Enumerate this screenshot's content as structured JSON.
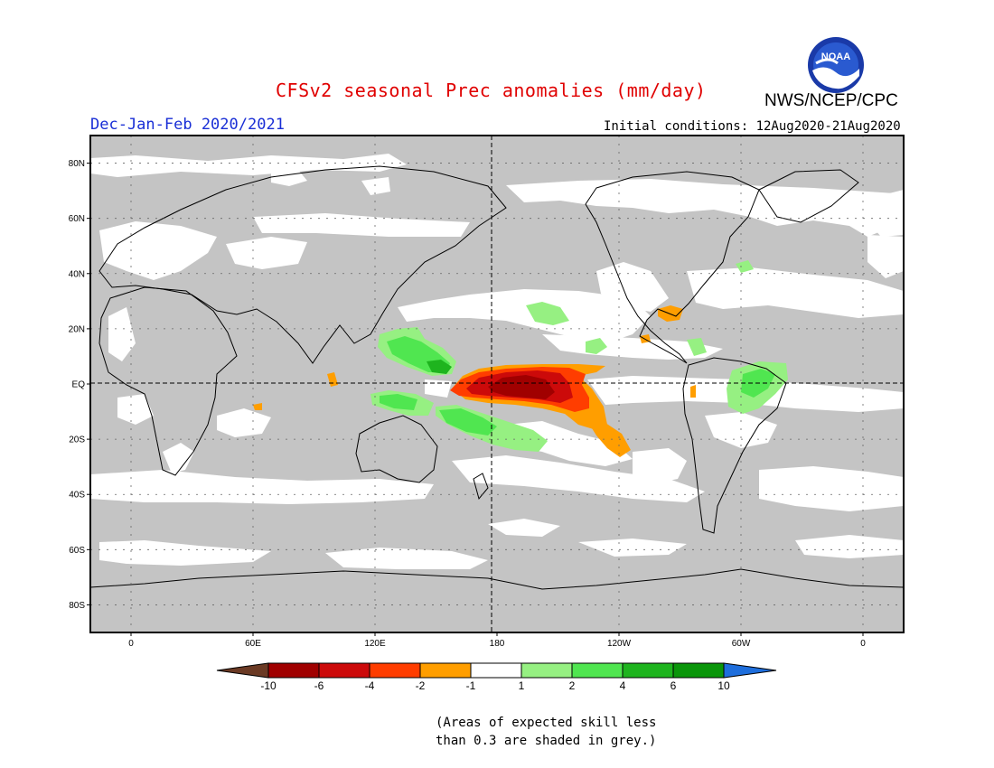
{
  "header": {
    "title": "CFSv2 seasonal Prec anomalies (mm/day)",
    "organization": "NWS/NCEP/CPC",
    "logo_text": "NOAA",
    "season": "Dec-Jan-Feb 2020/2021",
    "initial_conditions": "Initial conditions: 12Aug2020-21Aug2020"
  },
  "map": {
    "lat_labels": [
      "80N",
      "60N",
      "40N",
      "20N",
      "EQ",
      "20S",
      "40S",
      "60S",
      "80S"
    ],
    "lon_labels": [
      "0",
      "60E",
      "120E",
      "180",
      "120W",
      "60W",
      "0"
    ],
    "colors": {
      "skill_mask": "#c4c4c4",
      "land_outline": "#000000",
      "neg_10": "#6b3a24",
      "neg_6": "#a00000",
      "neg_4": "#cc0a0a",
      "neg_2": "#ff3d00",
      "neg_1": "#ff9e00",
      "neutral": "#ffffff",
      "pos_1": "#96f082",
      "pos_2": "#50e650",
      "pos_4": "#1eb41e",
      "pos_6": "#0a960a",
      "pos_10": "#1e6edc"
    }
  },
  "colorbar": {
    "labels": [
      "-10",
      "-6",
      "-4",
      "-2",
      "-1",
      "1",
      "2",
      "4",
      "6",
      "10"
    ],
    "colors": [
      "#a00000",
      "#cc0a0a",
      "#ff3d00",
      "#ff9e00",
      "#ffffff",
      "#96f082",
      "#50e650",
      "#1eb41e",
      "#0a960a"
    ],
    "low_arrow_color": "#6b3a24",
    "high_arrow_color": "#1e6edc"
  },
  "footnote": {
    "line1": "(Areas of expected skill less",
    "line2": "than 0.3 are shaded in grey.)"
  }
}
